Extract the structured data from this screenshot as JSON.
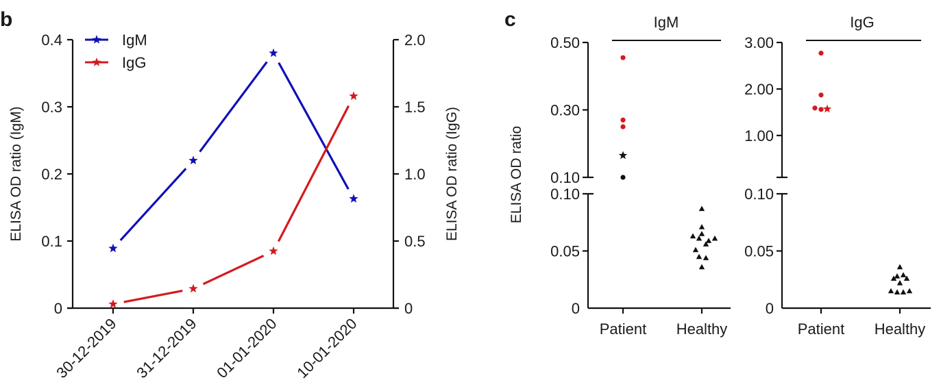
{
  "chart_data": [
    {
      "panel": "b",
      "type": "line",
      "categories": [
        "30-12-2019",
        "31-12-2019",
        "01-01-2020",
        "10-01-2020"
      ],
      "series": [
        {
          "name": "IgM",
          "axis": "left",
          "color": "#1010b8",
          "marker": "star",
          "values": [
            0.089,
            0.22,
            0.38,
            0.163
          ]
        },
        {
          "name": "IgG",
          "axis": "right",
          "color": "#d41a1f",
          "marker": "star",
          "values": [
            0.03,
            0.145,
            0.425,
            1.58
          ]
        }
      ],
      "ylabel_left": "ELISA OD ratio (IgM)",
      "ylabel_right": "ELISA OD ratio (IgG)",
      "ylim_left": [
        0,
        0.4
      ],
      "ylim_right": [
        0,
        2.0
      ],
      "yticks_left": [
        "0",
        "0.1",
        "0.2",
        "0.3",
        "0.4"
      ],
      "yticks_right": [
        "0",
        "0.5",
        "1.0",
        "1.5",
        "2.0"
      ],
      "yticks_left_values": [
        0,
        0.1,
        0.2,
        0.3,
        0.4
      ],
      "yticks_right_values": [
        0,
        0.5,
        1.0,
        1.5,
        2.0
      ],
      "legend": [
        "IgM",
        "IgG"
      ],
      "legend_position": "top-left",
      "grid": false
    },
    {
      "panel": "c",
      "type": "scatter",
      "ylabel": "ELISA OD ratio",
      "groups": [
        "Patient",
        "Healthy"
      ],
      "subplots": [
        {
          "title": "IgM",
          "broken_axis": true,
          "upper_ylim": [
            0.1,
            0.5
          ],
          "upper_ticks": [
            "0.10",
            "0.30",
            "0.50"
          ],
          "upper_tick_values": [
            0.1,
            0.3,
            0.5
          ],
          "lower_ylim": [
            0,
            0.1
          ],
          "lower_ticks": [
            "0",
            "0.05",
            "0.10"
          ],
          "lower_tick_values": [
            0,
            0.05,
            0.1
          ],
          "patient_points": [
            {
              "value": 0.455,
              "marker": "circle",
              "color": "#d41a1f",
              "offset": 0
            },
            {
              "value": 0.27,
              "marker": "circle",
              "color": "#d41a1f",
              "offset": 0
            },
            {
              "value": 0.25,
              "marker": "circle",
              "color": "#d41a1f",
              "offset": 0
            },
            {
              "value": 0.165,
              "marker": "star",
              "color": "#111111",
              "offset": 0
            },
            {
              "value": 0.1,
              "marker": "circle",
              "color": "#111111",
              "offset": 0
            }
          ],
          "healthy_points": [
            {
              "value": 0.087,
              "offset": 0
            },
            {
              "value": 0.071,
              "offset": 0
            },
            {
              "value": 0.065,
              "offset": 0
            },
            {
              "value": 0.063,
              "offset": -13
            },
            {
              "value": 0.061,
              "offset": -4
            },
            {
              "value": 0.061,
              "offset": 19
            },
            {
              "value": 0.059,
              "offset": 10
            },
            {
              "value": 0.056,
              "offset": 6
            },
            {
              "value": 0.051,
              "offset": -9
            },
            {
              "value": 0.045,
              "offset": -4
            },
            {
              "value": 0.044,
              "offset": 6
            },
            {
              "value": 0.036,
              "offset": 0
            }
          ]
        },
        {
          "title": "IgG",
          "broken_axis": true,
          "upper_ylim": [
            0.1,
            3.0
          ],
          "upper_ticks": [
            "1.00",
            "2.00",
            "3.00"
          ],
          "upper_tick_values": [
            1.0,
            2.0,
            3.0
          ],
          "lower_ylim": [
            0,
            0.1
          ],
          "lower_ticks": [
            "0",
            "0.05",
            "0.10"
          ],
          "lower_tick_values": [
            0,
            0.05,
            0.1
          ],
          "patient_points": [
            {
              "value": 2.77,
              "marker": "circle",
              "color": "#d41a1f",
              "offset": 0
            },
            {
              "value": 1.87,
              "marker": "circle",
              "color": "#d41a1f",
              "offset": 0
            },
            {
              "value": 1.59,
              "marker": "circle",
              "color": "#d41a1f",
              "offset": -9
            },
            {
              "value": 1.56,
              "marker": "circle",
              "color": "#d41a1f",
              "offset": 0
            },
            {
              "value": 1.57,
              "marker": "star",
              "color": "#d41a1f",
              "offset": 9
            }
          ],
          "healthy_points": [
            {
              "value": 0.036,
              "offset": 0
            },
            {
              "value": 0.028,
              "offset": -4
            },
            {
              "value": 0.029,
              "offset": 5
            },
            {
              "value": 0.026,
              "offset": -9
            },
            {
              "value": 0.026,
              "offset": 10
            },
            {
              "value": 0.022,
              "offset": 0
            },
            {
              "value": 0.015,
              "offset": -13
            },
            {
              "value": 0.014,
              "offset": -4
            },
            {
              "value": 0.014,
              "offset": 5
            },
            {
              "value": 0.015,
              "offset": 14
            }
          ]
        }
      ]
    }
  ],
  "labels": {
    "panel_b": "b",
    "panel_c": "c"
  }
}
